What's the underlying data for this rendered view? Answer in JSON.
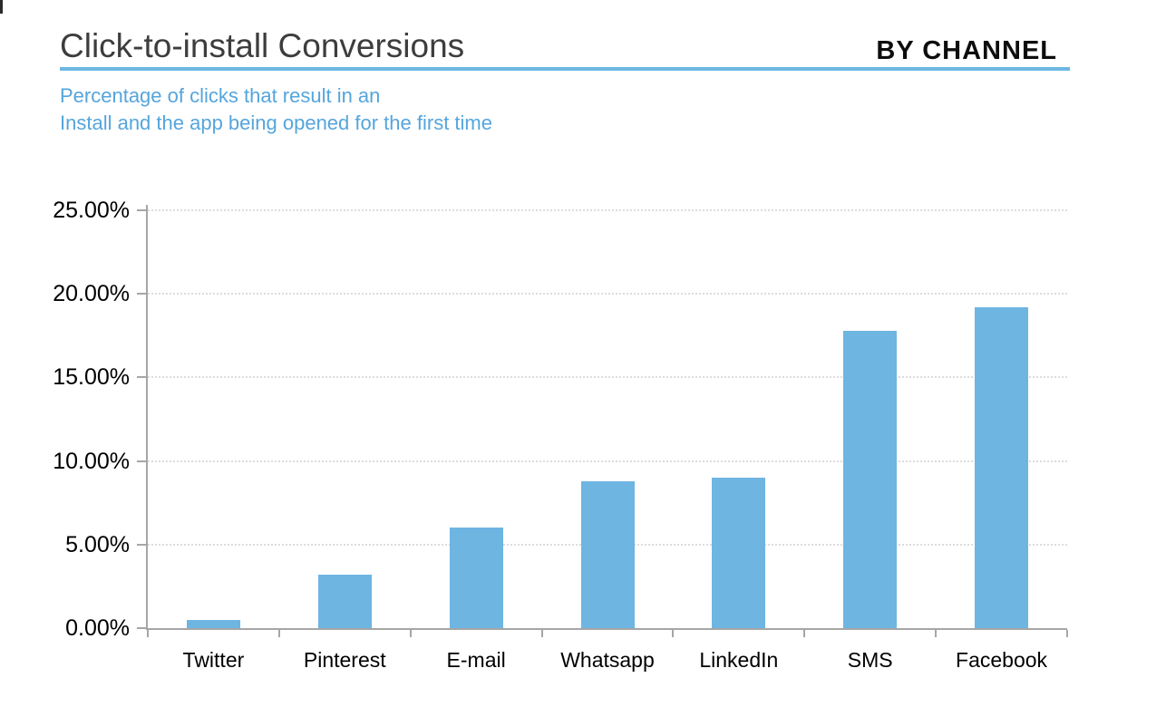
{
  "header": {
    "title": "Click-to-install Conversions",
    "kicker": "BY CHANNEL",
    "subtitle_line1": "Percentage of clicks that result in an",
    "subtitle_line2": "Install and the app being opened for the first time"
  },
  "colors": {
    "accent_blue": "#6db7e3",
    "subtitle_blue": "#55a5dc",
    "bar_fill": "#6eb5e2",
    "axis_gray": "#a6a6a6",
    "gridline_gray": "#dcdcdc",
    "title_gray": "#3d3d3d",
    "label_black": "#000000"
  },
  "chart_data": {
    "type": "bar",
    "title": "Click-to-install Conversions",
    "subtitle": "Percentage of clicks that result in an Install and the app being opened for the first time",
    "categories": [
      "Twitter",
      "Pinterest",
      "E-mail",
      "Whatsapp",
      "LinkedIn",
      "SMS",
      "Facebook"
    ],
    "values": [
      0.5,
      3.2,
      6.0,
      8.8,
      9.0,
      17.8,
      19.2
    ],
    "value_unit": "%",
    "xlabel": "",
    "ylabel": "",
    "ylim": [
      0,
      25
    ],
    "ytick_step": 5,
    "ytick_labels": [
      "0.00%",
      "5.00%",
      "10.00%",
      "15.00%",
      "20.00%",
      "25.00%"
    ],
    "grid": "horizontal-dotted",
    "legend": "none",
    "bar_color": "#6eb5e2"
  }
}
